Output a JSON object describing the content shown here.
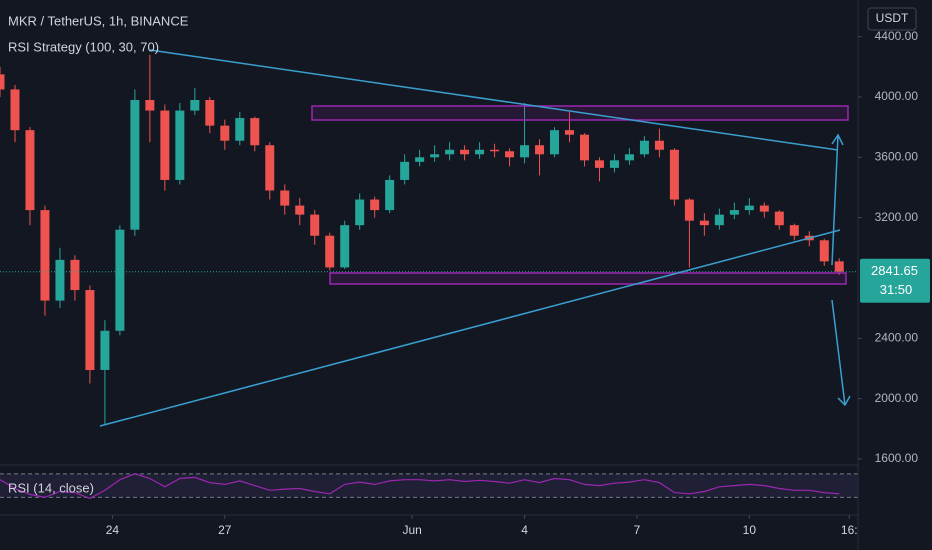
{
  "chart_data": {
    "type": "candlestick",
    "title": "MKR / TetherUS, 1h, BINANCE",
    "strategy_label": "RSI Strategy (100, 30, 70)",
    "currency": "USDT",
    "up_color": "#26a69a",
    "down_color": "#ef5350",
    "x": [
      21,
      21.4,
      21.8,
      22.2,
      22.6,
      23,
      23.4,
      23.8,
      24.2,
      24.6,
      25,
      25.4,
      25.8,
      26.2,
      26.6,
      27,
      27.4,
      27.8,
      28.2,
      28.6,
      29,
      29.4,
      29.8,
      30.2,
      30.6,
      31,
      31.4,
      31.8,
      32.2,
      32.6,
      33,
      33.4,
      33.8,
      34.2,
      34.6,
      35,
      35.4,
      35.8,
      36.2,
      36.6,
      37,
      37.4,
      37.8,
      38.2,
      38.6,
      39,
      39.4,
      39.8,
      40.2,
      40.6,
      41,
      41.4,
      41.8,
      42.2,
      42.6,
      43,
      43.4
    ],
    "open": [
      4150,
      4050,
      3780,
      3250,
      2650,
      2920,
      2720,
      2190,
      2450,
      3120,
      3980,
      3910,
      3450,
      3910,
      3980,
      3810,
      3710,
      3860,
      3680,
      3380,
      3280,
      3220,
      3080,
      2870,
      3150,
      3320,
      3250,
      3450,
      3570,
      3600,
      3620,
      3650,
      3620,
      3650,
      3640,
      3600,
      3680,
      3620,
      3780,
      3750,
      3580,
      3530,
      3580,
      3620,
      3710,
      3650,
      3320,
      3180,
      3150,
      3220,
      3250,
      3280,
      3240,
      3150,
      3080,
      3050,
      2910
    ],
    "high": [
      4200,
      4080,
      3800,
      3280,
      3000,
      2950,
      2750,
      2520,
      3150,
      4050,
      4280,
      3950,
      3960,
      4060,
      4000,
      3850,
      3900,
      3870,
      3700,
      3420,
      3330,
      3250,
      3100,
      3180,
      3360,
      3340,
      3480,
      3620,
      3650,
      3680,
      3700,
      3680,
      3700,
      3690,
      3660,
      3960,
      3720,
      3800,
      3900,
      3760,
      3600,
      3620,
      3660,
      3740,
      3790,
      3660,
      3330,
      3230,
      3260,
      3300,
      3330,
      3300,
      3250,
      3160,
      3110,
      3060,
      2930
    ],
    "low": [
      4000,
      3700,
      3150,
      2550,
      2600,
      2650,
      2100,
      1830,
      2420,
      3080,
      3700,
      3380,
      3420,
      3880,
      3760,
      3650,
      3680,
      3640,
      3320,
      3220,
      3150,
      3020,
      2850,
      2860,
      3120,
      3200,
      3230,
      3420,
      3540,
      3570,
      3580,
      3580,
      3590,
      3600,
      3540,
      3560,
      3480,
      3600,
      3700,
      3540,
      3440,
      3500,
      3550,
      3600,
      3600,
      3280,
      2870,
      3080,
      3120,
      3190,
      3220,
      3200,
      3120,
      3050,
      3010,
      2880,
      2820
    ],
    "close": [
      4050,
      3780,
      3250,
      2650,
      2920,
      2720,
      2190,
      2450,
      3120,
      3980,
      3910,
      3450,
      3910,
      3980,
      3810,
      3710,
      3860,
      3680,
      3380,
      3280,
      3220,
      3080,
      2870,
      3150,
      3320,
      3250,
      3450,
      3570,
      3600,
      3620,
      3650,
      3620,
      3650,
      3640,
      3600,
      3680,
      3620,
      3780,
      3750,
      3580,
      3530,
      3580,
      3620,
      3710,
      3650,
      3320,
      3180,
      3150,
      3220,
      3250,
      3280,
      3240,
      3150,
      3080,
      3050,
      2910,
      2841.65
    ],
    "last_price": 2841.65,
    "countdown": "31:50",
    "xlim": [
      21.0,
      43.9
    ],
    "xticks": [
      24,
      27,
      {
        "value": 32,
        "label": "Jun"
      },
      {
        "value": 35,
        "label": "4"
      },
      {
        "value": 38,
        "label": "7"
      },
      {
        "value": 41,
        "label": "10"
      },
      {
        "value": 43.667,
        "label": "16:"
      }
    ],
    "ylim": [
      1560,
      4643
    ],
    "yticks": [
      {
        "value": 1600,
        "label": "1600.00"
      },
      {
        "value": 2000,
        "label": "2000.00"
      },
      {
        "value": 2400,
        "label": "2400.00"
      },
      {
        "value": 3200,
        "label": "3200.00"
      },
      {
        "value": 3600,
        "label": "3600.00"
      },
      {
        "value": 4000,
        "label": "4000.00"
      },
      {
        "value": 4400,
        "label": "4400.00"
      }
    ],
    "rsi": {
      "name": "RSI (14, close)",
      "color": "#9c27b0",
      "ylim": [
        0,
        85
      ],
      "bands": [
        30,
        70
      ],
      "values": [
        60,
        45,
        35,
        30,
        40,
        38,
        28,
        42,
        60,
        70,
        62,
        48,
        62,
        64,
        55,
        52,
        58,
        50,
        42,
        44,
        45,
        40,
        36,
        52,
        56,
        52,
        58,
        60,
        60,
        58,
        60,
        57,
        59,
        57,
        54,
        60,
        55,
        62,
        60,
        52,
        50,
        54,
        56,
        60,
        55,
        38,
        36,
        40,
        48,
        50,
        52,
        50,
        45,
        42,
        42,
        38,
        36
      ]
    }
  }
}
